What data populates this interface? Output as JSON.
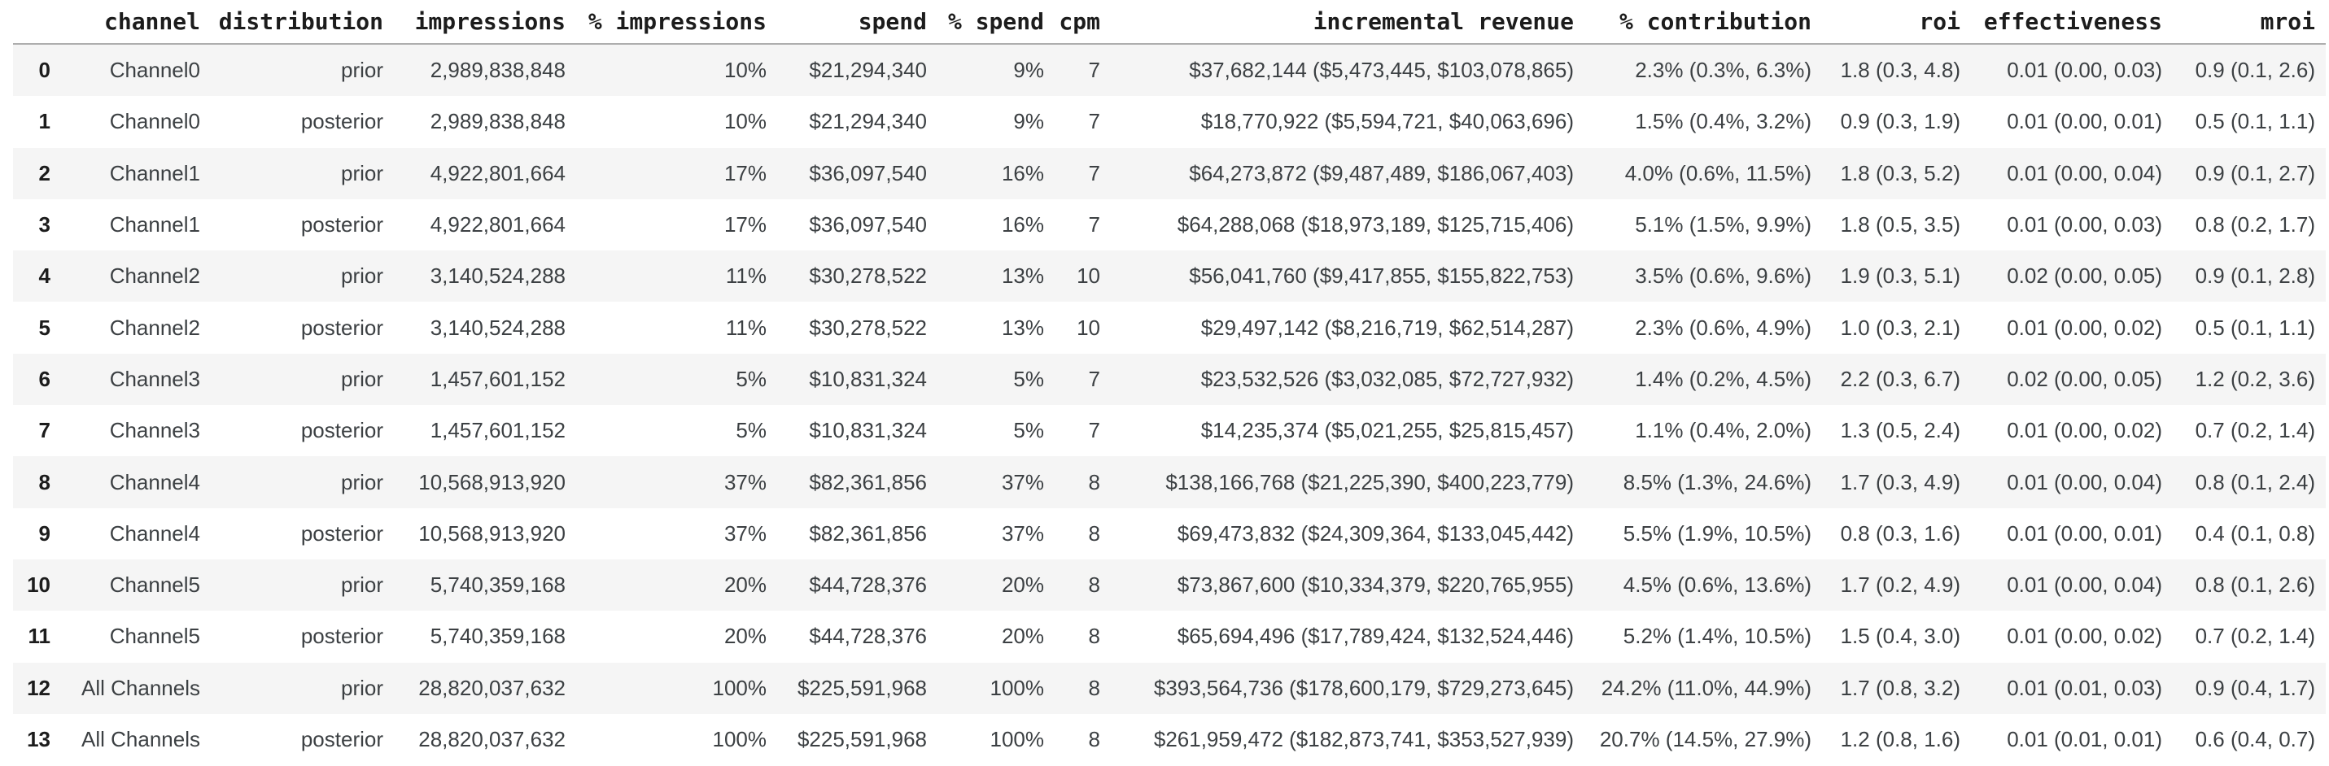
{
  "table": {
    "columns": [
      {
        "key": "index",
        "label": ""
      },
      {
        "key": "channel",
        "label": "channel"
      },
      {
        "key": "distribution",
        "label": "distribution"
      },
      {
        "key": "impressions",
        "label": "impressions"
      },
      {
        "key": "pct-impressions",
        "label": "% impressions"
      },
      {
        "key": "spend",
        "label": "spend"
      },
      {
        "key": "pct-spend",
        "label": "% spend"
      },
      {
        "key": "cpm",
        "label": "cpm"
      },
      {
        "key": "incremental-revenue",
        "label": "incremental revenue"
      },
      {
        "key": "pct-contribution",
        "label": "% contribution"
      },
      {
        "key": "roi",
        "label": "roi"
      },
      {
        "key": "effectiveness",
        "label": "effectiveness"
      },
      {
        "key": "mroi",
        "label": "mroi"
      }
    ],
    "rows": [
      [
        "0",
        "Channel0",
        "prior",
        "2,989,838,848",
        "10%",
        "$21,294,340",
        "9%",
        "7",
        "$37,682,144 ($5,473,445, $103,078,865)",
        "2.3% (0.3%, 6.3%)",
        "1.8 (0.3, 4.8)",
        "0.01 (0.00, 0.03)",
        "0.9 (0.1, 2.6)"
      ],
      [
        "1",
        "Channel0",
        "posterior",
        "2,989,838,848",
        "10%",
        "$21,294,340",
        "9%",
        "7",
        "$18,770,922 ($5,594,721, $40,063,696)",
        "1.5% (0.4%, 3.2%)",
        "0.9 (0.3, 1.9)",
        "0.01 (0.00, 0.01)",
        "0.5 (0.1, 1.1)"
      ],
      [
        "2",
        "Channel1",
        "prior",
        "4,922,801,664",
        "17%",
        "$36,097,540",
        "16%",
        "7",
        "$64,273,872 ($9,487,489, $186,067,403)",
        "4.0% (0.6%, 11.5%)",
        "1.8 (0.3, 5.2)",
        "0.01 (0.00, 0.04)",
        "0.9 (0.1, 2.7)"
      ],
      [
        "3",
        "Channel1",
        "posterior",
        "4,922,801,664",
        "17%",
        "$36,097,540",
        "16%",
        "7",
        "$64,288,068 ($18,973,189, $125,715,406)",
        "5.1% (1.5%, 9.9%)",
        "1.8 (0.5, 3.5)",
        "0.01 (0.00, 0.03)",
        "0.8 (0.2, 1.7)"
      ],
      [
        "4",
        "Channel2",
        "prior",
        "3,140,524,288",
        "11%",
        "$30,278,522",
        "13%",
        "10",
        "$56,041,760 ($9,417,855, $155,822,753)",
        "3.5% (0.6%, 9.6%)",
        "1.9 (0.3, 5.1)",
        "0.02 (0.00, 0.05)",
        "0.9 (0.1, 2.8)"
      ],
      [
        "5",
        "Channel2",
        "posterior",
        "3,140,524,288",
        "11%",
        "$30,278,522",
        "13%",
        "10",
        "$29,497,142 ($8,216,719, $62,514,287)",
        "2.3% (0.6%, 4.9%)",
        "1.0 (0.3, 2.1)",
        "0.01 (0.00, 0.02)",
        "0.5 (0.1, 1.1)"
      ],
      [
        "6",
        "Channel3",
        "prior",
        "1,457,601,152",
        "5%",
        "$10,831,324",
        "5%",
        "7",
        "$23,532,526 ($3,032,085, $72,727,932)",
        "1.4% (0.2%, 4.5%)",
        "2.2 (0.3, 6.7)",
        "0.02 (0.00, 0.05)",
        "1.2 (0.2, 3.6)"
      ],
      [
        "7",
        "Channel3",
        "posterior",
        "1,457,601,152",
        "5%",
        "$10,831,324",
        "5%",
        "7",
        "$14,235,374 ($5,021,255, $25,815,457)",
        "1.1% (0.4%, 2.0%)",
        "1.3 (0.5, 2.4)",
        "0.01 (0.00, 0.02)",
        "0.7 (0.2, 1.4)"
      ],
      [
        "8",
        "Channel4",
        "prior",
        "10,568,913,920",
        "37%",
        "$82,361,856",
        "37%",
        "8",
        "$138,166,768 ($21,225,390, $400,223,779)",
        "8.5% (1.3%, 24.6%)",
        "1.7 (0.3, 4.9)",
        "0.01 (0.00, 0.04)",
        "0.8 (0.1, 2.4)"
      ],
      [
        "9",
        "Channel4",
        "posterior",
        "10,568,913,920",
        "37%",
        "$82,361,856",
        "37%",
        "8",
        "$69,473,832 ($24,309,364, $133,045,442)",
        "5.5% (1.9%, 10.5%)",
        "0.8 (0.3, 1.6)",
        "0.01 (0.00, 0.01)",
        "0.4 (0.1, 0.8)"
      ],
      [
        "10",
        "Channel5",
        "prior",
        "5,740,359,168",
        "20%",
        "$44,728,376",
        "20%",
        "8",
        "$73,867,600 ($10,334,379, $220,765,955)",
        "4.5% (0.6%, 13.6%)",
        "1.7 (0.2, 4.9)",
        "0.01 (0.00, 0.04)",
        "0.8 (0.1, 2.6)"
      ],
      [
        "11",
        "Channel5",
        "posterior",
        "5,740,359,168",
        "20%",
        "$44,728,376",
        "20%",
        "8",
        "$65,694,496 ($17,789,424, $132,524,446)",
        "5.2% (1.4%, 10.5%)",
        "1.5 (0.4, 3.0)",
        "0.01 (0.00, 0.02)",
        "0.7 (0.2, 1.4)"
      ],
      [
        "12",
        "All Channels",
        "prior",
        "28,820,037,632",
        "100%",
        "$225,591,968",
        "100%",
        "8",
        "$393,564,736 ($178,600,179, $729,273,645)",
        "24.2% (11.0%, 44.9%)",
        "1.7 (0.8, 3.2)",
        "0.01 (0.01, 0.03)",
        "0.9 (0.4, 1.7)"
      ],
      [
        "13",
        "All Channels",
        "posterior",
        "28,820,037,632",
        "100%",
        "$225,591,968",
        "100%",
        "8",
        "$261,959,472 ($182,873,741, $353,527,939)",
        "20.7% (14.5%, 27.9%)",
        "1.2 (0.8, 1.6)",
        "0.01 (0.01, 0.01)",
        "0.6 (0.4, 0.7)"
      ]
    ],
    "stripe_color": "#f5f5f5",
    "header_divider_color": "#aeaeae",
    "header_text_color": "#1c1c1c",
    "body_text_color": "#3c4043"
  }
}
